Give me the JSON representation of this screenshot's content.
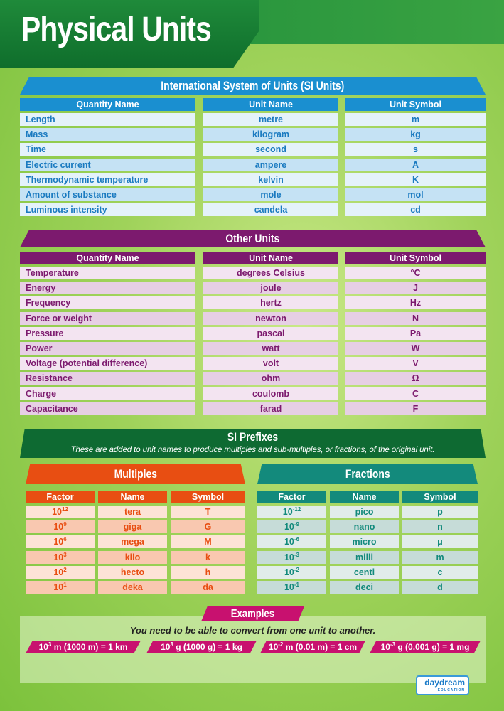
{
  "title": "Physical Units",
  "colors": {
    "si": "#1a8fd0",
    "other": "#7c1a6e",
    "prefix": "#0e6a32",
    "multiples": "#e84e12",
    "fractions": "#138a7c",
    "examples": "#c8116f"
  },
  "si": {
    "heading": "International System of Units (SI Units)",
    "headers": [
      "Quantity Name",
      "Unit Name",
      "Unit Symbol"
    ],
    "rows": [
      [
        "Length",
        "metre",
        "m"
      ],
      [
        "Mass",
        "kilogram",
        "kg"
      ],
      [
        "Time",
        "second",
        "s"
      ],
      [
        "Electric current",
        "ampere",
        "A"
      ],
      [
        "Thermodynamic temperature",
        "kelvin",
        "K"
      ],
      [
        "Amount of substance",
        "mole",
        "mol"
      ],
      [
        "Luminous intensity",
        "candela",
        "cd"
      ]
    ]
  },
  "other": {
    "heading": "Other Units",
    "headers": [
      "Quantity Name",
      "Unit Name",
      "Unit Symbol"
    ],
    "rows": [
      [
        "Temperature",
        "degrees Celsius",
        "°C"
      ],
      [
        "Energy",
        "joule",
        "J"
      ],
      [
        "Frequency",
        "hertz",
        "Hz"
      ],
      [
        "Force or weight",
        "newton",
        "N"
      ],
      [
        "Pressure",
        "pascal",
        "Pa"
      ],
      [
        "Power",
        "watt",
        "W"
      ],
      [
        "Voltage (potential difference)",
        "volt",
        "V"
      ],
      [
        "Resistance",
        "ohm",
        "Ω"
      ],
      [
        "Charge",
        "coulomb",
        "C"
      ],
      [
        "Capacitance",
        "farad",
        "F"
      ]
    ]
  },
  "prefixes": {
    "heading": "SI Prefixes",
    "subtitle": "These are added to unit names to produce multiples and sub-multiples, or fractions, of the original unit.",
    "multiples": {
      "heading": "Multiples",
      "headers": [
        "Factor",
        "Name",
        "Symbol"
      ],
      "rows": [
        [
          "12",
          "tera",
          "T"
        ],
        [
          "9",
          "giga",
          "G"
        ],
        [
          "6",
          "mega",
          "M"
        ],
        [
          "3",
          "kilo",
          "k"
        ],
        [
          "2",
          "hecto",
          "h"
        ],
        [
          "1",
          "deka",
          "da"
        ]
      ]
    },
    "fractions": {
      "heading": "Fractions",
      "headers": [
        "Factor",
        "Name",
        "Symbol"
      ],
      "rows": [
        [
          "-12",
          "pico",
          "p"
        ],
        [
          "-9",
          "nano",
          "n"
        ],
        [
          "-6",
          "micro",
          "μ"
        ],
        [
          "-3",
          "milli",
          "m"
        ],
        [
          "-2",
          "centi",
          "c"
        ],
        [
          "-1",
          "deci",
          "d"
        ]
      ]
    },
    "factor_base": "10"
  },
  "examples": {
    "heading": "Examples",
    "subtitle": "You need to be able to convert from one unit to another.",
    "items": [
      {
        "exp": "3",
        "text": " m (1000 m) = 1 km"
      },
      {
        "exp": "3",
        "text": " g (1000 g) = 1 kg"
      },
      {
        "exp": "-2",
        "text": " m (0.01 m) = 1 cm"
      },
      {
        "exp": "-3",
        "text": " g (0.001 g) = 1 mg"
      }
    ]
  },
  "logo": {
    "text": "daydream",
    "sub": "EDUCATION"
  }
}
